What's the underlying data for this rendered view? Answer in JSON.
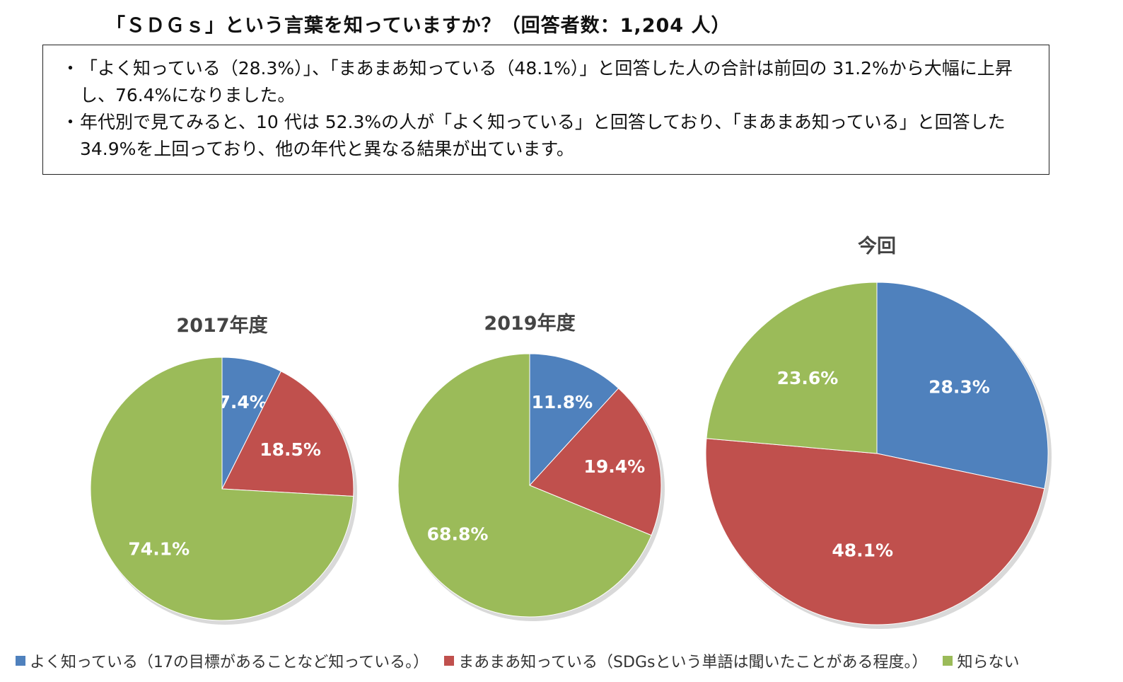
{
  "title": "「ＳＤＧｓ」という言葉を知っていますか？（回答者数：1,204 人）",
  "summary": [
    {
      "mark": "・",
      "text": "「よく知っている（28.3%）」、「まあまあ知っている（48.1%）」と回答した人の合計は前回の 31.2%から大幅に上昇し、76.4%になりました。"
    },
    {
      "mark": "・",
      "text": "年代別で見てみると、10 代は 52.3%の人が「よく知っている」と回答しており、「まあまあ知っている」と回答した 34.9%を上回っており、他の年代と異なる結果が出ています。"
    }
  ],
  "colors": {
    "well_known": "#4f81bd",
    "somewhat": "#c0504d",
    "unknown": "#9bbb59"
  },
  "chart_data": [
    {
      "type": "pie",
      "title": "2017年度",
      "labels": [
        "よく知っている",
        "まあまあ知っている",
        "知らない"
      ],
      "values": [
        7.4,
        18.5,
        74.1
      ],
      "value_labels": [
        "7.4%",
        "18.5%",
        "74.1%"
      ]
    },
    {
      "type": "pie",
      "title": "2019年度",
      "labels": [
        "よく知っている",
        "まあまあ知っている",
        "知らない"
      ],
      "values": [
        11.8,
        19.4,
        68.8
      ],
      "value_labels": [
        "11.8%",
        "19.4%",
        "68.8%"
      ]
    },
    {
      "type": "pie",
      "title": "今回",
      "labels": [
        "よく知っている",
        "まあまあ知っている",
        "知らない"
      ],
      "values": [
        28.3,
        48.1,
        23.6
      ],
      "value_labels": [
        "28.3%",
        "48.1%",
        "23.6%"
      ]
    }
  ],
  "legend": [
    {
      "label": "よく知っている（17の目標があることなど知っている。）",
      "color": "#4f81bd"
    },
    {
      "label": "まあまあ知っている（SDGsという単語は聞いたことがある程度。）",
      "color": "#c0504d"
    },
    {
      "label": "知らない",
      "color": "#9bbb59"
    }
  ]
}
